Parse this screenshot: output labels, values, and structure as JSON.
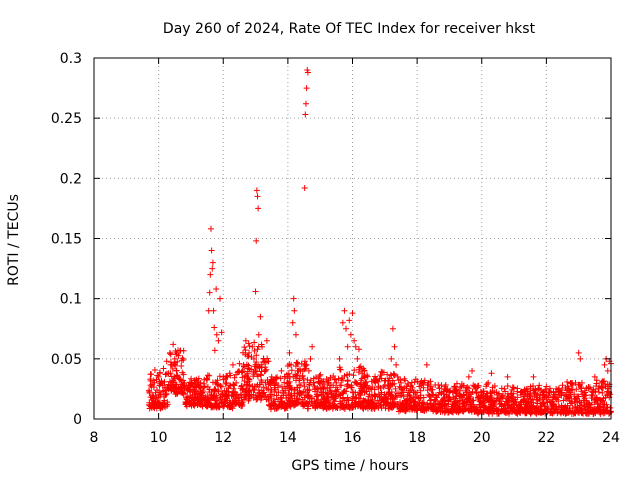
{
  "chart_data": {
    "type": "scatter",
    "title": "Day 260 of 2024, Rate Of TEC Index for receiver hkst",
    "xlabel": "GPS time / hours",
    "ylabel": "ROTI / TECUs",
    "xlim": [
      8,
      24
    ],
    "ylim": [
      0,
      0.3
    ],
    "xticks": [
      {
        "value": 8,
        "label": "8"
      },
      {
        "value": 10,
        "label": "10"
      },
      {
        "value": 12,
        "label": "12"
      },
      {
        "value": 14,
        "label": "14"
      },
      {
        "value": 16,
        "label": "16"
      },
      {
        "value": 18,
        "label": "18"
      },
      {
        "value": 20,
        "label": "20"
      },
      {
        "value": 22,
        "label": "22"
      },
      {
        "value": 24,
        "label": "24"
      }
    ],
    "yticks": [
      {
        "value": 0,
        "label": "0"
      },
      {
        "value": 0.05,
        "label": "0.05"
      },
      {
        "value": 0.1,
        "label": "0.1"
      },
      {
        "value": 0.15,
        "label": "0.15"
      },
      {
        "value": 0.2,
        "label": "0.2"
      },
      {
        "value": 0.25,
        "label": "0.25"
      },
      {
        "value": 0.3,
        "label": "0.3"
      }
    ],
    "grid": true,
    "marker": "+",
    "color": "#ff0000",
    "series": [
      {
        "name": "ROTI",
        "points": [
          [
            9.75,
            0.028
          ],
          [
            9.8,
            0.018
          ],
          [
            9.85,
            0.032
          ],
          [
            9.9,
            0.012
          ],
          [
            9.95,
            0.024
          ],
          [
            10.0,
            0.035
          ],
          [
            10.05,
            0.02
          ],
          [
            10.1,
            0.03
          ],
          [
            10.15,
            0.042
          ],
          [
            10.2,
            0.026
          ],
          [
            10.25,
            0.048
          ],
          [
            10.3,
            0.038
          ],
          [
            10.35,
            0.055
          ],
          [
            10.4,
            0.045
          ],
          [
            10.45,
            0.062
          ],
          [
            10.5,
            0.05
          ],
          [
            10.55,
            0.04
          ],
          [
            10.6,
            0.057
          ],
          [
            10.65,
            0.033
          ],
          [
            10.7,
            0.044
          ],
          [
            10.75,
            0.022
          ],
          [
            10.8,
            0.03
          ],
          [
            10.85,
            0.018
          ],
          [
            10.9,
            0.025
          ],
          [
            10.95,
            0.015
          ],
          [
            11.0,
            0.028
          ],
          [
            11.05,
            0.02
          ],
          [
            11.1,
            0.032
          ],
          [
            11.15,
            0.024
          ],
          [
            11.2,
            0.018
          ],
          [
            11.25,
            0.027
          ],
          [
            11.3,
            0.03
          ],
          [
            11.35,
            0.022
          ],
          [
            11.4,
            0.026
          ],
          [
            11.45,
            0.018
          ],
          [
            11.5,
            0.033
          ],
          [
            11.55,
            0.09
          ],
          [
            11.58,
            0.105
          ],
          [
            11.6,
            0.12
          ],
          [
            11.62,
            0.158
          ],
          [
            11.64,
            0.14
          ],
          [
            11.66,
            0.125
          ],
          [
            11.68,
            0.13
          ],
          [
            11.7,
            0.09
          ],
          [
            11.72,
            0.076
          ],
          [
            11.74,
            0.057
          ],
          [
            11.78,
            0.108
          ],
          [
            11.8,
            0.07
          ],
          [
            11.85,
            0.065
          ],
          [
            11.9,
            0.1
          ],
          [
            11.95,
            0.072
          ],
          [
            12.0,
            0.035
          ],
          [
            12.1,
            0.03
          ],
          [
            12.2,
            0.038
          ],
          [
            12.3,
            0.045
          ],
          [
            12.4,
            0.03
          ],
          [
            12.5,
            0.046
          ],
          [
            12.6,
            0.04
          ],
          [
            12.7,
            0.065
          ],
          [
            12.8,
            0.055
          ],
          [
            12.9,
            0.06
          ],
          [
            12.95,
            0.05
          ],
          [
            13.0,
            0.106
          ],
          [
            13.02,
            0.148
          ],
          [
            13.04,
            0.19
          ],
          [
            13.06,
            0.185
          ],
          [
            13.08,
            0.175
          ],
          [
            13.1,
            0.07
          ],
          [
            13.15,
            0.085
          ],
          [
            13.2,
            0.06
          ],
          [
            13.25,
            0.05
          ],
          [
            13.3,
            0.04
          ],
          [
            13.35,
            0.065
          ],
          [
            13.4,
            0.048
          ],
          [
            13.5,
            0.035
          ],
          [
            13.6,
            0.03
          ],
          [
            13.7,
            0.028
          ],
          [
            13.8,
            0.04
          ],
          [
            13.9,
            0.035
          ],
          [
            14.0,
            0.03
          ],
          [
            14.05,
            0.055
          ],
          [
            14.1,
            0.045
          ],
          [
            14.15,
            0.08
          ],
          [
            14.18,
            0.1
          ],
          [
            14.2,
            0.09
          ],
          [
            14.25,
            0.07
          ],
          [
            14.3,
            0.04
          ],
          [
            14.35,
            0.032
          ],
          [
            14.4,
            0.028
          ],
          [
            14.45,
            0.035
          ],
          [
            14.5,
            0.03
          ],
          [
            14.52,
            0.192
          ],
          [
            14.54,
            0.253
          ],
          [
            14.56,
            0.262
          ],
          [
            14.58,
            0.275
          ],
          [
            14.6,
            0.29
          ],
          [
            14.62,
            0.288
          ],
          [
            14.65,
            0.04
          ],
          [
            14.7,
            0.05
          ],
          [
            14.75,
            0.06
          ],
          [
            14.8,
            0.03
          ],
          [
            14.9,
            0.025
          ],
          [
            15.0,
            0.03
          ],
          [
            15.1,
            0.025
          ],
          [
            15.2,
            0.02
          ],
          [
            15.3,
            0.024
          ],
          [
            15.4,
            0.028
          ],
          [
            15.5,
            0.03
          ],
          [
            15.6,
            0.05
          ],
          [
            15.7,
            0.08
          ],
          [
            15.75,
            0.09
          ],
          [
            15.8,
            0.075
          ],
          [
            15.85,
            0.06
          ],
          [
            15.9,
            0.082
          ],
          [
            15.95,
            0.07
          ],
          [
            16.0,
            0.088
          ],
          [
            16.05,
            0.065
          ],
          [
            16.1,
            0.06
          ],
          [
            16.15,
            0.05
          ],
          [
            16.2,
            0.058
          ],
          [
            16.3,
            0.04
          ],
          [
            16.4,
            0.03
          ],
          [
            16.5,
            0.025
          ],
          [
            16.6,
            0.02
          ],
          [
            16.7,
            0.03
          ],
          [
            16.8,
            0.026
          ],
          [
            16.9,
            0.022
          ],
          [
            17.0,
            0.028
          ],
          [
            17.1,
            0.032
          ],
          [
            17.2,
            0.05
          ],
          [
            17.25,
            0.075
          ],
          [
            17.3,
            0.06
          ],
          [
            17.35,
            0.045
          ],
          [
            17.4,
            0.035
          ],
          [
            17.5,
            0.03
          ],
          [
            17.6,
            0.026
          ],
          [
            17.7,
            0.02
          ],
          [
            17.8,
            0.024
          ],
          [
            17.9,
            0.018
          ],
          [
            18.0,
            0.022
          ],
          [
            18.1,
            0.03
          ],
          [
            18.2,
            0.026
          ],
          [
            18.3,
            0.045
          ],
          [
            18.4,
            0.025
          ],
          [
            18.5,
            0.02
          ],
          [
            18.6,
            0.018
          ],
          [
            18.7,
            0.022
          ],
          [
            18.8,
            0.016
          ],
          [
            18.9,
            0.02
          ],
          [
            19.0,
            0.018
          ],
          [
            19.1,
            0.022
          ],
          [
            19.2,
            0.015
          ],
          [
            19.3,
            0.02
          ],
          [
            19.4,
            0.018
          ],
          [
            19.5,
            0.024
          ],
          [
            19.6,
            0.035
          ],
          [
            19.7,
            0.04
          ],
          [
            19.8,
            0.025
          ],
          [
            19.9,
            0.018
          ],
          [
            20.0,
            0.02
          ],
          [
            20.1,
            0.015
          ],
          [
            20.2,
            0.03
          ],
          [
            20.3,
            0.038
          ],
          [
            20.4,
            0.022
          ],
          [
            20.5,
            0.02
          ],
          [
            20.6,
            0.018
          ],
          [
            20.7,
            0.025
          ],
          [
            20.8,
            0.035
          ],
          [
            20.9,
            0.02
          ],
          [
            21.0,
            0.015
          ],
          [
            21.1,
            0.018
          ],
          [
            21.2,
            0.022
          ],
          [
            21.3,
            0.014
          ],
          [
            21.4,
            0.02
          ],
          [
            21.5,
            0.025
          ],
          [
            21.6,
            0.035
          ],
          [
            21.7,
            0.018
          ],
          [
            21.8,
            0.015
          ],
          [
            21.9,
            0.02
          ],
          [
            22.0,
            0.016
          ],
          [
            22.1,
            0.022
          ],
          [
            22.2,
            0.018
          ],
          [
            22.3,
            0.025
          ],
          [
            22.4,
            0.02
          ],
          [
            22.5,
            0.028
          ],
          [
            22.6,
            0.02
          ],
          [
            22.7,
            0.018
          ],
          [
            22.8,
            0.024
          ],
          [
            22.9,
            0.03
          ],
          [
            23.0,
            0.055
          ],
          [
            23.05,
            0.05
          ],
          [
            23.1,
            0.03
          ],
          [
            23.2,
            0.022
          ],
          [
            23.3,
            0.026
          ],
          [
            23.4,
            0.02
          ],
          [
            23.5,
            0.035
          ],
          [
            23.6,
            0.025
          ],
          [
            23.7,
            0.03
          ],
          [
            23.8,
            0.045
          ],
          [
            23.85,
            0.05
          ],
          [
            23.9,
            0.04
          ],
          [
            23.95,
            0.048
          ],
          [
            24.0,
            0.046
          ]
        ],
        "band": {
          "note": "dense background scatter",
          "segments": [
            [
              9.7,
              10.3,
              0.008,
              0.042
            ],
            [
              10.3,
              10.8,
              0.02,
              0.06
            ],
            [
              10.8,
              11.5,
              0.01,
              0.035
            ],
            [
              11.5,
              12.3,
              0.008,
              0.038
            ],
            [
              12.3,
              12.6,
              0.01,
              0.045
            ],
            [
              12.6,
              13.4,
              0.015,
              0.065
            ],
            [
              13.4,
              14.0,
              0.008,
              0.04
            ],
            [
              14.0,
              14.6,
              0.01,
              0.05
            ],
            [
              14.6,
              15.5,
              0.008,
              0.038
            ],
            [
              15.5,
              16.4,
              0.008,
              0.045
            ],
            [
              16.4,
              17.4,
              0.008,
              0.04
            ],
            [
              17.4,
              18.5,
              0.006,
              0.035
            ],
            [
              18.5,
              19.8,
              0.005,
              0.03
            ],
            [
              19.8,
              21.0,
              0.004,
              0.03
            ],
            [
              21.0,
              22.5,
              0.004,
              0.028
            ],
            [
              22.5,
              24.0,
              0.004,
              0.033
            ]
          ]
        }
      }
    ]
  }
}
